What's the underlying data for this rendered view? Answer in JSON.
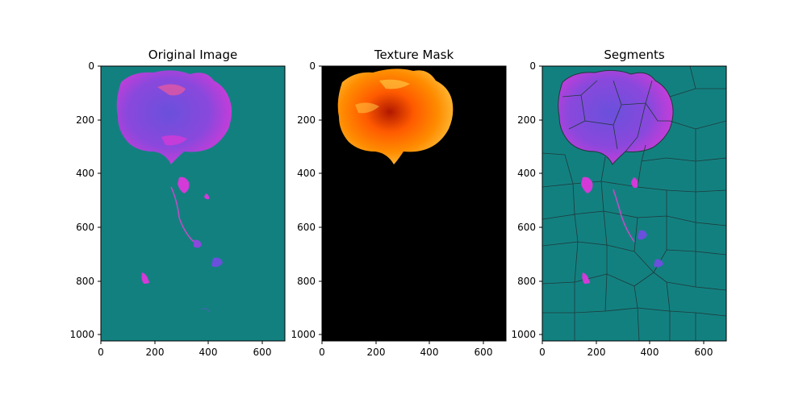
{
  "chart_data": [
    {
      "type": "image",
      "title": "Original Image",
      "xlim": [
        0,
        684
      ],
      "ylim": [
        1024,
        0
      ],
      "xticks": [
        0,
        200,
        400,
        600
      ],
      "yticks": [
        0,
        200,
        400,
        600,
        800,
        1000
      ],
      "colors": {
        "background": "#138080",
        "blob_magenta": "#d33ad8",
        "blob_violet": "#6a50dc",
        "blob_pink": "#f05a9a"
      }
    },
    {
      "type": "image",
      "title": "Texture Mask",
      "xlim": [
        0,
        684
      ],
      "ylim": [
        1024,
        0
      ],
      "xticks": [
        0,
        200,
        400,
        600
      ],
      "yticks": [
        0,
        200,
        400,
        600,
        800,
        1000
      ],
      "colors": {
        "background": "#000000",
        "fire_outer": "#ff8c00",
        "fire_mid": "#ff5a00",
        "fire_core": "#b01800",
        "fire_light": "#ffd24a"
      }
    },
    {
      "type": "image",
      "title": "Segments",
      "xlim": [
        0,
        684
      ],
      "ylim": [
        1024,
        0
      ],
      "xticks": [
        0,
        200,
        400,
        600
      ],
      "yticks": [
        0,
        200,
        400,
        600,
        800,
        1000
      ],
      "colors": {
        "background": "#138080",
        "boundary": "#1e3a3a",
        "blob_magenta": "#d33ad8",
        "blob_violet": "#6a50dc"
      }
    }
  ]
}
